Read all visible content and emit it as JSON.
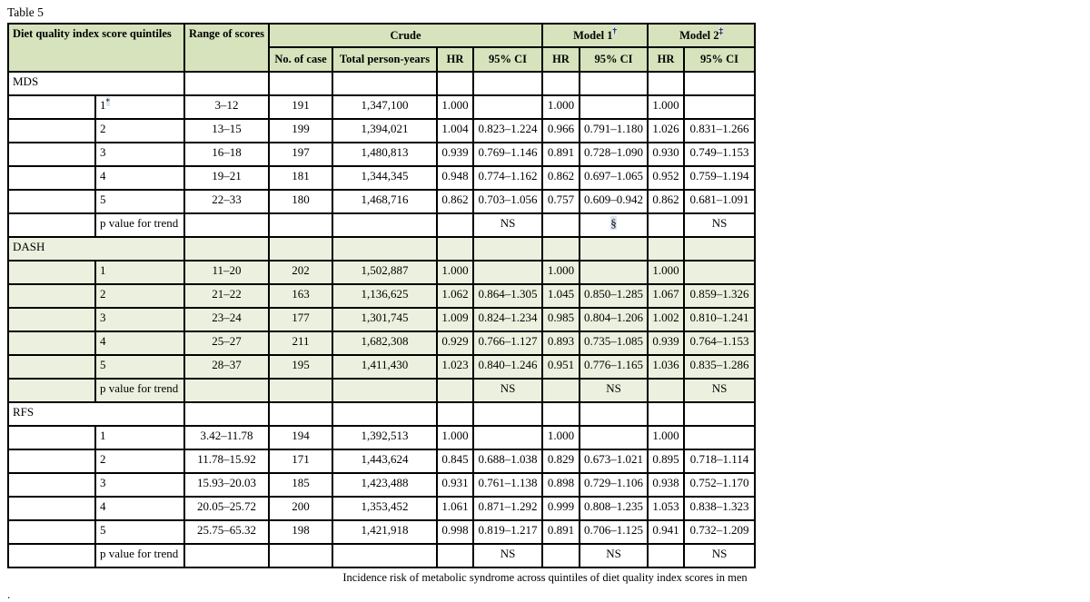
{
  "page_title": "Table 5",
  "caption": "Incidence risk of metabolic syndrome across quintiles of diet quality index scores in men",
  "trailing_period": ".",
  "colors": {
    "header_bg": "#d6e3bc",
    "section_highlight_bg": "#ebf1de",
    "footnote_highlight_bg": "#dbe5f1",
    "border": "#000000"
  },
  "table": {
    "header": {
      "col1": "Diet quality index score quintiles",
      "col2": "Range of scores",
      "group_crude": "Crude",
      "group_model1": "Model 1",
      "model1_sup": "†",
      "group_model2": "Model 2",
      "model2_sup": "‡",
      "sub": [
        "No. of case",
        "Total person-years",
        "HR",
        "95% CI",
        "HR",
        "95% CI",
        "HR",
        "95% CI"
      ]
    },
    "sections": [
      {
        "name": "MDS",
        "highlight": false,
        "rows": [
          {
            "quintile": "1",
            "sup": "*",
            "range": "3–12",
            "cases": "191",
            "person_years": "1,347,100",
            "crude_hr": "1.000",
            "crude_ci": "",
            "m1_hr": "1.000",
            "m1_ci": "",
            "m2_hr": "1.000",
            "m2_ci": ""
          },
          {
            "quintile": "2",
            "range": "13–15",
            "cases": "199",
            "person_years": "1,394,021",
            "crude_hr": "1.004",
            "crude_ci": "0.823–1.224",
            "m1_hr": "0.966",
            "m1_ci": "0.791–1.180",
            "m2_hr": "1.026",
            "m2_ci": "0.831–1.266"
          },
          {
            "quintile": "3",
            "range": "16–18",
            "cases": "197",
            "person_years": "1,480,813",
            "crude_hr": "0.939",
            "crude_ci": "0.769–1.146",
            "m1_hr": "0.891",
            "m1_ci": "0.728–1.090",
            "m2_hr": "0.930",
            "m2_ci": "0.749–1.153"
          },
          {
            "quintile": "4",
            "range": "19–21",
            "cases": "181",
            "person_years": "1,344,345",
            "crude_hr": "0.948",
            "crude_ci": "0.774–1.162",
            "m1_hr": "0.862",
            "m1_ci": "0.697–1.065",
            "m2_hr": "0.952",
            "m2_ci": "0.759–1.194"
          },
          {
            "quintile": "5",
            "range": "22–33",
            "cases": "180",
            "person_years": "1,468,716",
            "crude_hr": "0.862",
            "crude_ci": "0.703–1.056",
            "m1_hr": "0.757",
            "m1_ci": "0.609–0.942",
            "m2_hr": "0.862",
            "m2_ci": "0.681–1.091"
          }
        ],
        "trend": {
          "label": "p value for trend",
          "crude_ci": "NS",
          "m1_ci": "§",
          "m1_ci_highlight": true,
          "m2_ci": "NS"
        }
      },
      {
        "name": "DASH",
        "highlight": true,
        "rows": [
          {
            "quintile": "1",
            "range": "11–20",
            "cases": "202",
            "person_years": "1,502,887",
            "crude_hr": "1.000",
            "crude_ci": "",
            "m1_hr": "1.000",
            "m1_ci": "",
            "m2_hr": "1.000",
            "m2_ci": ""
          },
          {
            "quintile": "2",
            "range": "21–22",
            "cases": "163",
            "person_years": "1,136,625",
            "crude_hr": "1.062",
            "crude_ci": "0.864–1.305",
            "m1_hr": "1.045",
            "m1_ci": "0.850–1.285",
            "m2_hr": "1.067",
            "m2_ci": "0.859–1.326"
          },
          {
            "quintile": "3",
            "range": "23–24",
            "cases": "177",
            "person_years": "1,301,745",
            "crude_hr": "1.009",
            "crude_ci": "0.824–1.234",
            "m1_hr": "0.985",
            "m1_ci": "0.804–1.206",
            "m2_hr": "1.002",
            "m2_ci": "0.810–1.241"
          },
          {
            "quintile": "4",
            "range": "25–27",
            "cases": "211",
            "person_years": "1,682,308",
            "crude_hr": "0.929",
            "crude_ci": "0.766–1.127",
            "m1_hr": "0.893",
            "m1_ci": "0.735–1.085",
            "m2_hr": "0.939",
            "m2_ci": "0.764–1.153"
          },
          {
            "quintile": "5",
            "range": "28–37",
            "cases": "195",
            "person_years": "1,411,430",
            "crude_hr": "1.023",
            "crude_ci": "0.840–1.246",
            "m1_hr": "0.951",
            "m1_ci": "0.776–1.165",
            "m2_hr": "1.036",
            "m2_ci": "0.835–1.286"
          }
        ],
        "trend": {
          "label": "p value for trend",
          "crude_ci": "NS",
          "m1_ci": "NS",
          "m1_ci_highlight": false,
          "m2_ci": "NS"
        }
      },
      {
        "name": "RFS",
        "highlight": false,
        "rows": [
          {
            "quintile": "1",
            "range": "3.42–11.78",
            "cases": "194",
            "person_years": "1,392,513",
            "crude_hr": "1.000",
            "crude_ci": "",
            "m1_hr": "1.000",
            "m1_ci": "",
            "m2_hr": "1.000",
            "m2_ci": ""
          },
          {
            "quintile": "2",
            "range": "11.78–15.92",
            "cases": "171",
            "person_years": "1,443,624",
            "crude_hr": "0.845",
            "crude_ci": "0.688–1.038",
            "m1_hr": "0.829",
            "m1_ci": "0.673–1.021",
            "m2_hr": "0.895",
            "m2_ci": "0.718–1.114"
          },
          {
            "quintile": "3",
            "range": "15.93–20.03",
            "cases": "185",
            "person_years": "1,423,488",
            "crude_hr": "0.931",
            "crude_ci": "0.761–1.138",
            "m1_hr": "0.898",
            "m1_ci": "0.729–1.106",
            "m2_hr": "0.938",
            "m2_ci": "0.752–1.170"
          },
          {
            "quintile": "4",
            "range": "20.05–25.72",
            "cases": "200",
            "person_years": "1,353,452",
            "crude_hr": "1.061",
            "crude_ci": "0.871–1.292",
            "m1_hr": "0.999",
            "m1_ci": "0.808–1.235",
            "m2_hr": "1.053",
            "m2_ci": "0.838–1.323"
          },
          {
            "quintile": "5",
            "range": "25.75–65.32",
            "cases": "198",
            "person_years": "1,421,918",
            "crude_hr": "0.998",
            "crude_ci": "0.819–1.217",
            "m1_hr": "0.891",
            "m1_ci": "0.706–1.125",
            "m2_hr": "0.941",
            "m2_ci": "0.732–1.209"
          }
        ],
        "trend": {
          "label": "p value for trend",
          "crude_ci": "NS",
          "m1_ci": "NS",
          "m1_ci_highlight": false,
          "m2_ci": "NS"
        }
      }
    ]
  }
}
